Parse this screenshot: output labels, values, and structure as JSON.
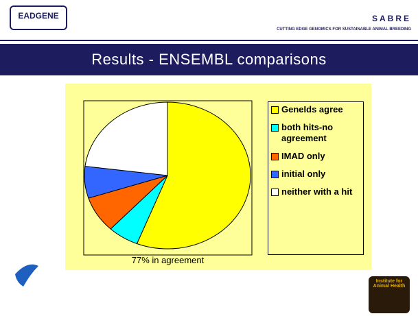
{
  "header": {
    "left_logo": "EADGENE",
    "right_logo": "SABRE",
    "tagline": "CUTTING EDGE GENOMICS FOR SUSTAINABLE ANIMAL BREEDING",
    "footer_logo": "Institute for Animal Health"
  },
  "chart_data": {
    "type": "pie",
    "title": "Results - ENSEMBL comparisons",
    "categories": [
      "GeneIds agree",
      "both hits-no agreement",
      "IMAD only",
      "initial only",
      "neither with a hit"
    ],
    "values": [
      56,
      6,
      8,
      7,
      23
    ],
    "colors": [
      "#ffff00",
      "#00ffff",
      "#ff6600",
      "#3366ff",
      "#ffffff"
    ],
    "annotation": "77% in agreement",
    "legend": "right"
  }
}
